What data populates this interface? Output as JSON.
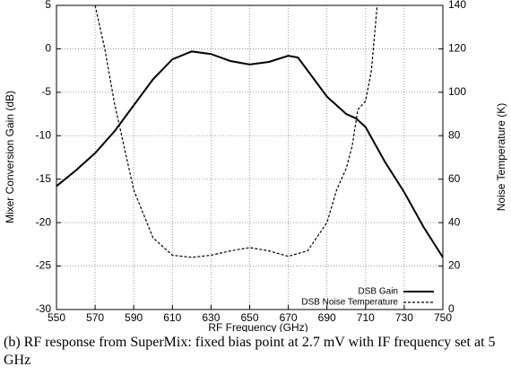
{
  "chart_data": {
    "type": "line",
    "xlabel": "RF Frequency (GHz)",
    "ylabel": "Mixer Conversion Gain (dB)",
    "y2label": "Noise Temperature (K)",
    "xlim": [
      550,
      750
    ],
    "xticks": [
      550,
      570,
      590,
      610,
      630,
      650,
      670,
      690,
      710,
      730,
      750
    ],
    "ylim": [
      -30,
      5
    ],
    "yticks": [
      -30,
      -25,
      -20,
      -15,
      -10,
      -5,
      0,
      5
    ],
    "y2lim": [
      0,
      140
    ],
    "y2ticks": [
      0,
      20,
      40,
      60,
      80,
      100,
      120,
      140
    ],
    "grid": true,
    "legend": "lower right",
    "series": [
      {
        "name": "DSB Gain",
        "color": "#000000",
        "line_style": "solid",
        "x": [
          550,
          560,
          570,
          580,
          590,
          600,
          610,
          620,
          630,
          640,
          650,
          660,
          670,
          675,
          680,
          690,
          700,
          705,
          710,
          720,
          730,
          740,
          750
        ],
        "values": [
          -15.8,
          -14,
          -12,
          -9.5,
          -6.5,
          -3.5,
          -1.2,
          -0.3,
          -0.6,
          -1.4,
          -1.8,
          -1.5,
          -0.8,
          -1.0,
          -2.5,
          -5.5,
          -7.5,
          -8,
          -9,
          -13,
          -16.5,
          -20.5,
          -24
        ]
      },
      {
        "name": "DSB Noise Temperature",
        "color": "#000000",
        "line_style": "dashed",
        "axis": "y2",
        "x": [
          570,
          575,
          580,
          585,
          590,
          600,
          610,
          620,
          630,
          640,
          650,
          660,
          670,
          680,
          690,
          695,
          700,
          703,
          706,
          710,
          713,
          716
        ],
        "values": [
          140,
          120,
          95,
          75,
          55,
          33,
          25,
          24,
          25,
          27,
          28.5,
          27,
          24.5,
          27,
          40,
          55,
          65,
          75,
          92,
          96,
          110,
          140
        ]
      }
    ]
  },
  "caption": "(b) RF response from SuperMix: fixed bias point at 2.7 mV with IF frequency set at 5 GHz"
}
